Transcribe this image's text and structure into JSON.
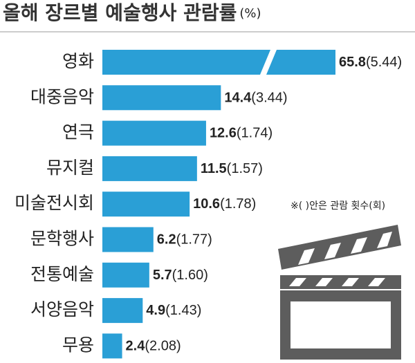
{
  "chart_data": {
    "type": "bar",
    "orientation": "horizontal",
    "title": "올해 장르별 예술행사 관람률",
    "unit": "(%)",
    "note": "※( )안은 관람 횟수(회)",
    "categories": [
      "영화",
      "대중음악",
      "연극",
      "뮤지컬",
      "미술전시회",
      "문학행사",
      "전통예술",
      "서양음악",
      "무용"
    ],
    "values": [
      65.8,
      14.4,
      12.6,
      11.5,
      10.6,
      6.2,
      5.7,
      4.9,
      2.4
    ],
    "counts": [
      "(5.44)",
      "(3.44)",
      "(1.74)",
      "(1.57)",
      "(1.78)",
      "(1.77)",
      "(1.60)",
      "(1.43)",
      "(2.08)"
    ],
    "color": "#2a9fd6"
  }
}
